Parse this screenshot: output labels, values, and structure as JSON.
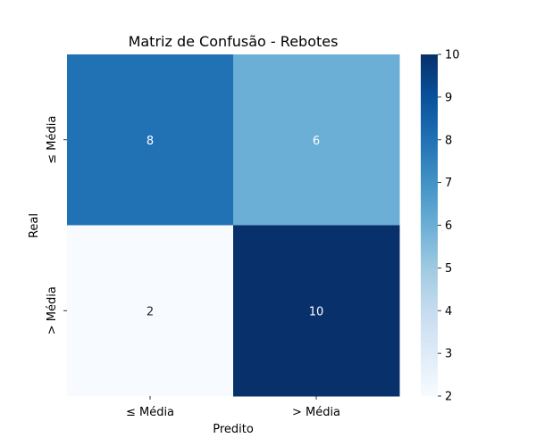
{
  "chart_data": {
    "type": "heatmap",
    "title": "Matriz de Confusão - Rebotes",
    "xlabel": "Predito",
    "ylabel": "Real",
    "x_categories": [
      "≤ Média",
      "> Média"
    ],
    "y_categories": [
      "≤ Média",
      "> Média"
    ],
    "values": [
      [
        8,
        6
      ],
      [
        2,
        10
      ]
    ],
    "colormap": "Blues",
    "color_range": [
      2,
      10
    ],
    "colorbar_ticks": [
      2,
      3,
      4,
      5,
      6,
      7,
      8,
      9,
      10
    ],
    "annotations": true,
    "grid": false,
    "colorbar_placement": "right"
  }
}
